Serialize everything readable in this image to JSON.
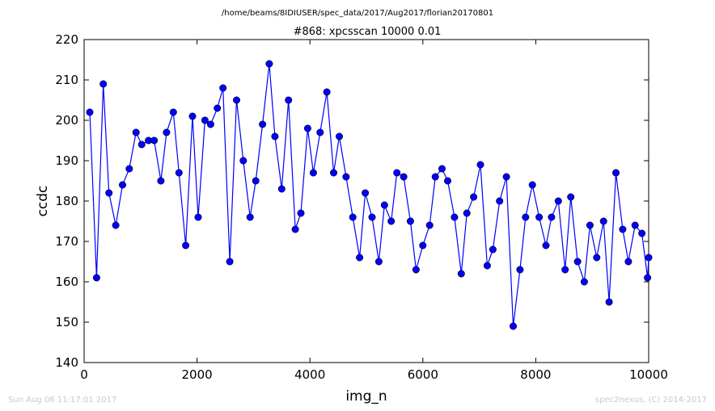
{
  "header": {
    "path": "/home/beams/8IDIUSER/spec_data/2017/Aug2017/florian20170801"
  },
  "footer": {
    "timestamp": "Sun Aug 06 11:17:01 2017",
    "credit": "spec2nexus, (C) 2014-2017"
  },
  "chart_data": {
    "type": "line",
    "title": "#868: xpcsscan 10000 0.01",
    "xlabel": "img_n",
    "ylabel": "ccdc",
    "xlim": [
      0,
      10000
    ],
    "ylim": [
      140,
      220
    ],
    "xticks": [
      0,
      2000,
      4000,
      6000,
      8000,
      10000
    ],
    "yticks": [
      140,
      150,
      160,
      170,
      180,
      190,
      200,
      210,
      220
    ],
    "grid": false,
    "line_color": "#0000ff",
    "marker_color": "#0000ff",
    "marker": "circle",
    "x": [
      100,
      220,
      340,
      440,
      560,
      680,
      800,
      920,
      1020,
      1140,
      1240,
      1360,
      1460,
      1580,
      1680,
      1800,
      1920,
      2020,
      2140,
      2240,
      2360,
      2460,
      2580,
      2700,
      2820,
      2940,
      3040,
      3160,
      3280,
      3380,
      3500,
      3620,
      3740,
      3840,
      3960,
      4060,
      4180,
      4300,
      4420,
      4520,
      4640,
      4760,
      4880,
      4980,
      5100,
      5220,
      5320,
      5440,
      5540,
      5660,
      5780,
      5880,
      6000,
      6120,
      6220,
      6340,
      6440,
      6560,
      6680,
      6780,
      6900,
      7020,
      7140,
      7240,
      7360,
      7480,
      7600,
      7720,
      7820,
      7940,
      8060,
      8180,
      8280,
      8400,
      8520,
      8620,
      8740,
      8860,
      8960,
      9080,
      9200,
      9300,
      9420,
      9540,
      9640,
      9760,
      9880,
      9980,
      10000
    ],
    "y": [
      202,
      161,
      209,
      182,
      174,
      184,
      188,
      197,
      194,
      195,
      195,
      185,
      197,
      202,
      187,
      169,
      201,
      176,
      200,
      199,
      203,
      208,
      165,
      205,
      190,
      176,
      185,
      199,
      214,
      196,
      183,
      205,
      173,
      177,
      198,
      187,
      197,
      207,
      187,
      196,
      186,
      176,
      166,
      182,
      176,
      165,
      179,
      175,
      187,
      186,
      175,
      163,
      169,
      174,
      186,
      188,
      185,
      176,
      162,
      177,
      181,
      189,
      164,
      168,
      180,
      186,
      149,
      163,
      176,
      184,
      176,
      169,
      176,
      180,
      163,
      181,
      165,
      160,
      174,
      166,
      175,
      155,
      187,
      173,
      165,
      174,
      172,
      161,
      166
    ]
  }
}
